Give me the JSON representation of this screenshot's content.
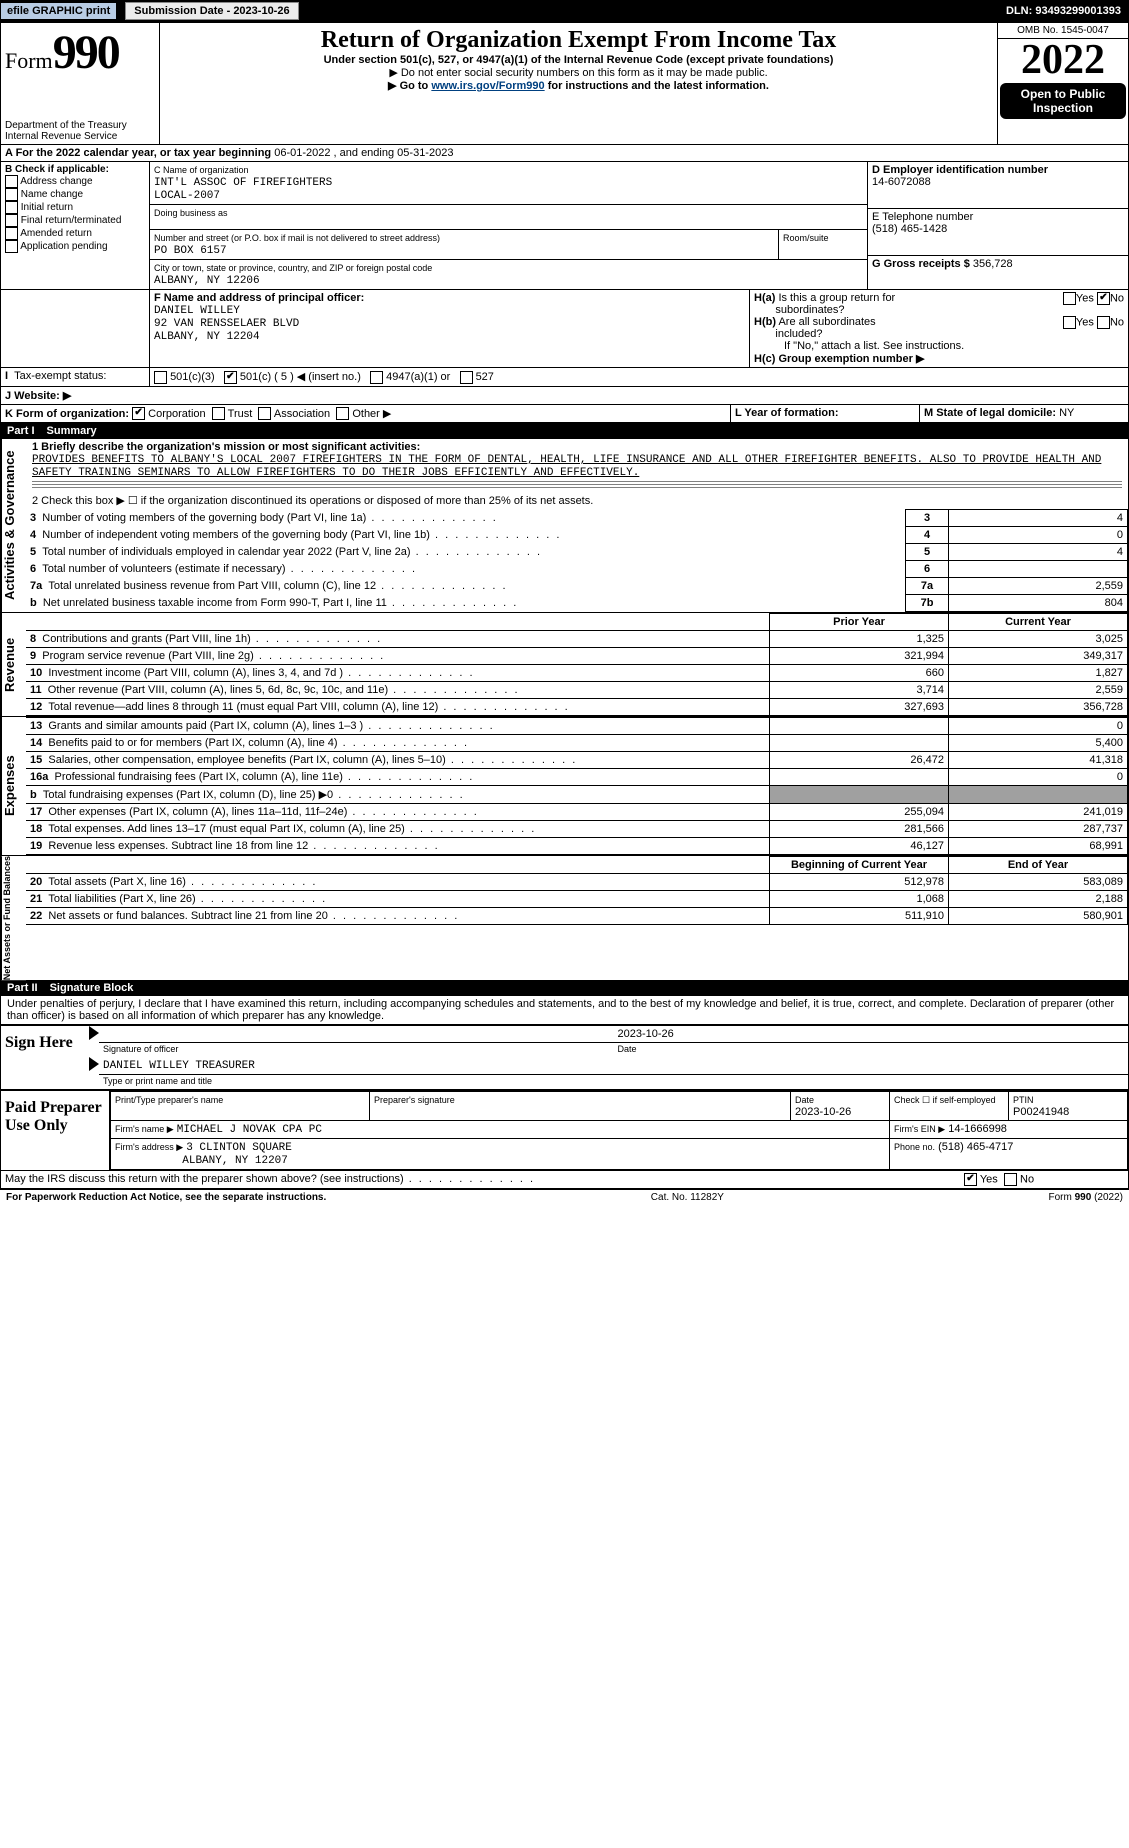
{
  "topbar": {
    "efile_label": "efile GRAPHIC print",
    "submission_label": "Submission Date - 2023-10-26",
    "dln_label": "DLN: 93493299001393"
  },
  "header": {
    "form_prefix": "Form",
    "form_number": "990",
    "dept": "Department of the Treasury",
    "irs": "Internal Revenue Service",
    "title": "Return of Organization Exempt From Income Tax",
    "subtitle": "Under section 501(c), 527, or 4947(a)(1) of the Internal Revenue Code (except private foundations)",
    "note1": "▶ Do not enter social security numbers on this form as it may be made public.",
    "note2_pre": "▶ Go to ",
    "note2_link": "www.irs.gov/Form990",
    "note2_post": " for instructions and the latest information.",
    "omb": "OMB No. 1545-0047",
    "year": "2022",
    "open_pub_l1": "Open to Public",
    "open_pub_l2": "Inspection"
  },
  "period": {
    "label_a": "A For the 2022 calendar year, or tax year beginning ",
    "begin": "06-01-2022",
    "mid": " , and ending ",
    "end": "05-31-2023"
  },
  "boxB": {
    "label": "B Check if applicable:",
    "items": [
      "Address change",
      "Name change",
      "Initial return",
      "Final return/terminated",
      "Amended return",
      "Application pending"
    ]
  },
  "boxC": {
    "label": "C Name of organization",
    "name_l1": "INT'L ASSOC OF FIREFIGHTERS",
    "name_l2": "LOCAL-2007",
    "dba_label": "Doing business as",
    "addr_label": "Number and street (or P.O. box if mail is not delivered to street address)",
    "room_label": "Room/suite",
    "addr": "PO BOX 6157",
    "city_label": "City or town, state or province, country, and ZIP or foreign postal code",
    "city": "ALBANY, NY  12206"
  },
  "boxD": {
    "label": "D Employer identification number",
    "ein": "14-6072088"
  },
  "boxE": {
    "label": "E Telephone number",
    "phone": "(518) 465-1428"
  },
  "boxG": {
    "label": "G Gross receipts $",
    "amount": "356,728"
  },
  "boxF": {
    "label": "F Name and address of principal officer:",
    "name": "DANIEL WILLEY",
    "addr1": "92 VAN RENSSELAER BLVD",
    "addr2": "ALBANY, NY  12204"
  },
  "boxH": {
    "ha_label": "H(a) Is this a group return for subordinates?",
    "hb_label": "H(b) Are all subordinates included?",
    "hb_note": "If \"No,\" attach a list. See instructions.",
    "hc_label": "H(c) Group exemption number ▶",
    "yes": "Yes",
    "no": "No"
  },
  "boxI": {
    "label": "I Tax-exempt status:",
    "c3": "501(c)(3)",
    "c_other_pre": "501(c) ( ",
    "c_other_num": "5",
    "c_other_post": " ) ◀ (insert no.)",
    "a1": "4947(a)(1) or",
    "527": "527"
  },
  "boxJ": {
    "label": "J  Website: ▶"
  },
  "boxK": {
    "label": "K Form of organization:",
    "corp": "Corporation",
    "trust": "Trust",
    "assoc": "Association",
    "other": "Other ▶"
  },
  "boxL": {
    "label": "L Year of formation:"
  },
  "boxM": {
    "label": "M State of legal domicile: ",
    "val": "NY"
  },
  "part1": {
    "hdr_no": "Part I",
    "hdr_title": "Summary",
    "l1_label": "1  Briefly describe the organization's mission or most significant activities:",
    "l1_text": "PROVIDES BENEFITS TO ALBANY'S LOCAL 2007 FIREFIGHTERS IN THE FORM OF DENTAL, HEALTH, LIFE INSURANCE AND ALL OTHER FIREFIGHTER BENEFITS. ALSO TO PROVIDE HEALTH AND SAFETY TRAINING SEMINARS TO ALLOW FIREFIGHTERS TO DO THEIR JOBS EFFICIENTLY AND EFFECTIVELY.",
    "l2": "2  Check this box ▶ ☐ if the organization discontinued its operations or disposed of more than 25% of its net assets.",
    "rows_a": [
      {
        "n": "3",
        "t": "Number of voting members of the governing body (Part VI, line 1a)",
        "b": "3",
        "v": "4"
      },
      {
        "n": "4",
        "t": "Number of independent voting members of the governing body (Part VI, line 1b)",
        "b": "4",
        "v": "0"
      },
      {
        "n": "5",
        "t": "Total number of individuals employed in calendar year 2022 (Part V, line 2a)",
        "b": "5",
        "v": "4"
      },
      {
        "n": "6",
        "t": "Total number of volunteers (estimate if necessary)",
        "b": "6",
        "v": ""
      },
      {
        "n": "7a",
        "t": "Total unrelated business revenue from Part VIII, column (C), line 12",
        "b": "7a",
        "v": "2,559"
      },
      {
        "n": "b",
        "t": "Net unrelated business taxable income from Form 990-T, Part I, line 11",
        "b": "7b",
        "v": "804"
      }
    ],
    "col_prior": "Prior Year",
    "col_current": "Current Year",
    "rows_rev": [
      {
        "n": "8",
        "t": "Contributions and grants (Part VIII, line 1h)",
        "p": "1,325",
        "c": "3,025"
      },
      {
        "n": "9",
        "t": "Program service revenue (Part VIII, line 2g)",
        "p": "321,994",
        "c": "349,317"
      },
      {
        "n": "10",
        "t": "Investment income (Part VIII, column (A), lines 3, 4, and 7d )",
        "p": "660",
        "c": "1,827"
      },
      {
        "n": "11",
        "t": "Other revenue (Part VIII, column (A), lines 5, 6d, 8c, 9c, 10c, and 11e)",
        "p": "3,714",
        "c": "2,559"
      },
      {
        "n": "12",
        "t": "Total revenue—add lines 8 through 11 (must equal Part VIII, column (A), line 12)",
        "p": "327,693",
        "c": "356,728"
      }
    ],
    "rows_exp": [
      {
        "n": "13",
        "t": "Grants and similar amounts paid (Part IX, column (A), lines 1–3 )",
        "p": "",
        "c": "0"
      },
      {
        "n": "14",
        "t": "Benefits paid to or for members (Part IX, column (A), line 4)",
        "p": "",
        "c": "5,400"
      },
      {
        "n": "15",
        "t": "Salaries, other compensation, employee benefits (Part IX, column (A), lines 5–10)",
        "p": "26,472",
        "c": "41,318"
      },
      {
        "n": "16a",
        "t": "Professional fundraising fees (Part IX, column (A), line 11e)",
        "p": "",
        "c": "0"
      },
      {
        "n": "b",
        "t": "Total fundraising expenses (Part IX, column (D), line 25) ▶0",
        "p": "GRAY",
        "c": "GRAY"
      },
      {
        "n": "17",
        "t": "Other expenses (Part IX, column (A), lines 11a–11d, 11f–24e)",
        "p": "255,094",
        "c": "241,019"
      },
      {
        "n": "18",
        "t": "Total expenses. Add lines 13–17 (must equal Part IX, column (A), line 25)",
        "p": "281,566",
        "c": "287,737"
      },
      {
        "n": "19",
        "t": "Revenue less expenses. Subtract line 18 from line 12",
        "p": "46,127",
        "c": "68,991"
      }
    ],
    "col_begin": "Beginning of Current Year",
    "col_end": "End of Year",
    "rows_net": [
      {
        "n": "20",
        "t": "Total assets (Part X, line 16)",
        "p": "512,978",
        "c": "583,089"
      },
      {
        "n": "21",
        "t": "Total liabilities (Part X, line 26)",
        "p": "1,068",
        "c": "2,188"
      },
      {
        "n": "22",
        "t": "Net assets or fund balances. Subtract line 21 from line 20",
        "p": "511,910",
        "c": "580,901"
      }
    ],
    "vert_a": "Activities & Governance",
    "vert_r": "Revenue",
    "vert_e": "Expenses",
    "vert_n": "Net Assets or Fund Balances"
  },
  "part2": {
    "hdr_no": "Part II",
    "hdr_title": "Signature Block",
    "penalty": "Under penalties of perjury, I declare that I have examined this return, including accompanying schedules and statements, and to the best of my knowledge and belief, it is true, correct, and complete. Declaration of preparer (other than officer) is based on all information of which preparer has any knowledge.",
    "sign_here": "Sign Here",
    "sig_officer": "Signature of officer",
    "sig_date": "2023-10-26",
    "date_label": "Date",
    "officer_name": "DANIEL WILLEY TREASURER",
    "type_name_label": "Type or print name and title",
    "paid_prep": "Paid Preparer Use Only",
    "prep_name_label": "Print/Type preparer's name",
    "prep_sig_label": "Preparer's signature",
    "prep_date_label": "Date",
    "prep_date": "2023-10-26",
    "check_if": "Check ☐ if self-employed",
    "ptin_label": "PTIN",
    "ptin": "P00241948",
    "firm_name_label": "Firm's name   ▶",
    "firm_name": "MICHAEL J NOVAK CPA PC",
    "firm_ein_label": "Firm's EIN ▶",
    "firm_ein": "14-1666998",
    "firm_addr_label": "Firm's address ▶",
    "firm_addr_l1": "3 CLINTON SQUARE",
    "firm_addr_l2": "ALBANY, NY  12207",
    "firm_phone_label": "Phone no.",
    "firm_phone": "(518) 465-4717",
    "may_irs": "May the IRS discuss this return with the preparer shown above? (see instructions)",
    "yes": "Yes",
    "no": "No"
  },
  "footer": {
    "pra": "For Paperwork Reduction Act Notice, see the separate instructions.",
    "cat": "Cat. No. 11282Y",
    "form": "Form 990 (2022)"
  },
  "colors": {
    "topbar_bg": "#000000",
    "efile_bg": "#b8cce4",
    "link": "#004080",
    "gray_fill": "#a0a0a0"
  }
}
